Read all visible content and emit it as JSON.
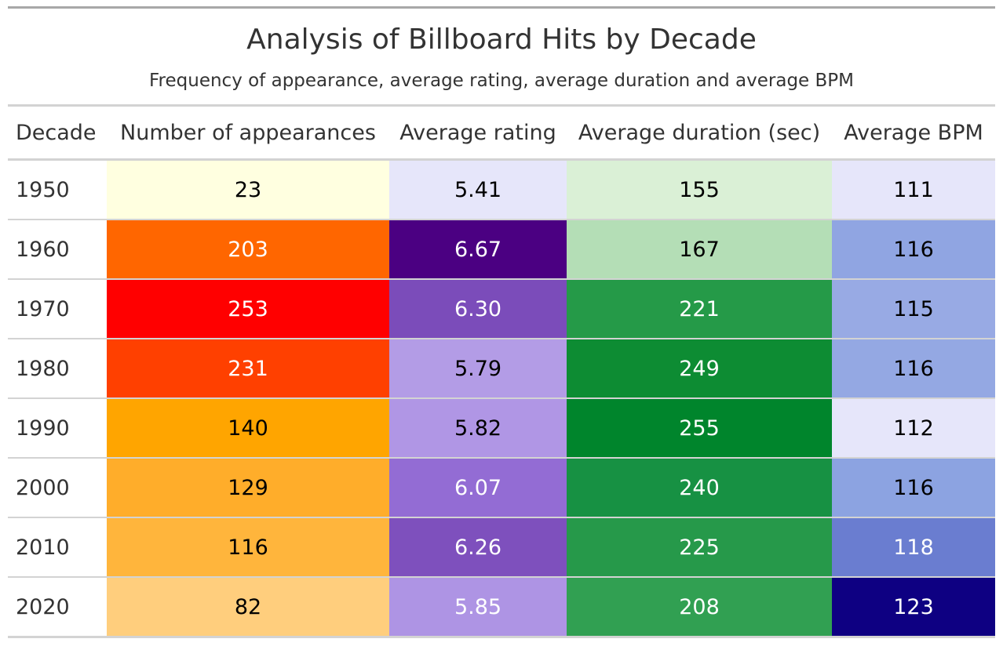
{
  "title": "Analysis of Billboard Hits by Decade",
  "subtitle": "Frequency of appearance, average rating, average duration and average BPM",
  "columns": [
    "Decade",
    "Number of appearances",
    "Average rating",
    "Average duration (sec)",
    "Average BPM"
  ],
  "chart_data": {
    "type": "table",
    "title": "Analysis of Billboard Hits by Decade",
    "subtitle": "Frequency of appearance, average rating, average duration and average BPM",
    "columns": [
      "Decade",
      "Number of appearances",
      "Average rating",
      "Average duration (sec)",
      "Average BPM"
    ],
    "rows": [
      {
        "decade": "1950",
        "appearances": "23",
        "rating": "5.41",
        "duration": "155",
        "bpm": "111"
      },
      {
        "decade": "1960",
        "appearances": "203",
        "rating": "6.67",
        "duration": "167",
        "bpm": "116"
      },
      {
        "decade": "1970",
        "appearances": "253",
        "rating": "6.30",
        "duration": "221",
        "bpm": "115"
      },
      {
        "decade": "1980",
        "appearances": "231",
        "rating": "5.79",
        "duration": "249",
        "bpm": "116"
      },
      {
        "decade": "1990",
        "appearances": "140",
        "rating": "5.82",
        "duration": "255",
        "bpm": "112"
      },
      {
        "decade": "2000",
        "appearances": "129",
        "rating": "6.07",
        "duration": "240",
        "bpm": "116"
      },
      {
        "decade": "2010",
        "appearances": "116",
        "rating": "6.26",
        "duration": "225",
        "bpm": "118"
      },
      {
        "decade": "2020",
        "appearances": "82",
        "rating": "5.85",
        "duration": "208",
        "bpm": "123"
      }
    ],
    "cell_colors": {
      "appearances": [
        {
          "bg": "#FFFFE0",
          "fg": "#000000"
        },
        {
          "bg": "#FF6600",
          "fg": "#FFFFFF"
        },
        {
          "bg": "#FF0000",
          "fg": "#FFFFFF"
        },
        {
          "bg": "#FF4000",
          "fg": "#FFFFFF"
        },
        {
          "bg": "#FFA500",
          "fg": "#000000"
        },
        {
          "bg": "#FFAD2A",
          "fg": "#000000"
        },
        {
          "bg": "#FFB53C",
          "fg": "#000000"
        },
        {
          "bg": "#FFCE7D",
          "fg": "#000000"
        }
      ],
      "rating": [
        {
          "bg": "#E6E6FA",
          "fg": "#000000"
        },
        {
          "bg": "#4B0082",
          "fg": "#FFFFFF"
        },
        {
          "bg": "#7B4CBA",
          "fg": "#FFFFFF"
        },
        {
          "bg": "#B39CE6",
          "fg": "#000000"
        },
        {
          "bg": "#B096E5",
          "fg": "#000000"
        },
        {
          "bg": "#936CD4",
          "fg": "#FFFFFF"
        },
        {
          "bg": "#7E50BD",
          "fg": "#FFFFFF"
        },
        {
          "bg": "#AE94E4",
          "fg": "#FFFFFF"
        }
      ],
      "duration": [
        {
          "bg": "#DAF0D6",
          "fg": "#000000"
        },
        {
          "bg": "#B4DEB6",
          "fg": "#000000"
        },
        {
          "bg": "#259A48",
          "fg": "#FFFFFF"
        },
        {
          "bg": "#0D8C33",
          "fg": "#FFFFFF"
        },
        {
          "bg": "#00852C",
          "fg": "#FFFFFF"
        },
        {
          "bg": "#179143",
          "fg": "#FFFFFF"
        },
        {
          "bg": "#26994A",
          "fg": "#FFFFFF"
        },
        {
          "bg": "#31A052",
          "fg": "#FFFFFF"
        }
      ],
      "bpm": [
        {
          "bg": "#E6E6FA",
          "fg": "#000000"
        },
        {
          "bg": "#90A5E2",
          "fg": "#000000"
        },
        {
          "bg": "#98AAE4",
          "fg": "#000000"
        },
        {
          "bg": "#94A8E3",
          "fg": "#000000"
        },
        {
          "bg": "#E6E6FA",
          "fg": "#000000"
        },
        {
          "bg": "#8CA3E1",
          "fg": "#000000"
        },
        {
          "bg": "#6A7DD0",
          "fg": "#FFFFFF"
        },
        {
          "bg": "#0E0082",
          "fg": "#FFFFFF"
        }
      ]
    }
  }
}
